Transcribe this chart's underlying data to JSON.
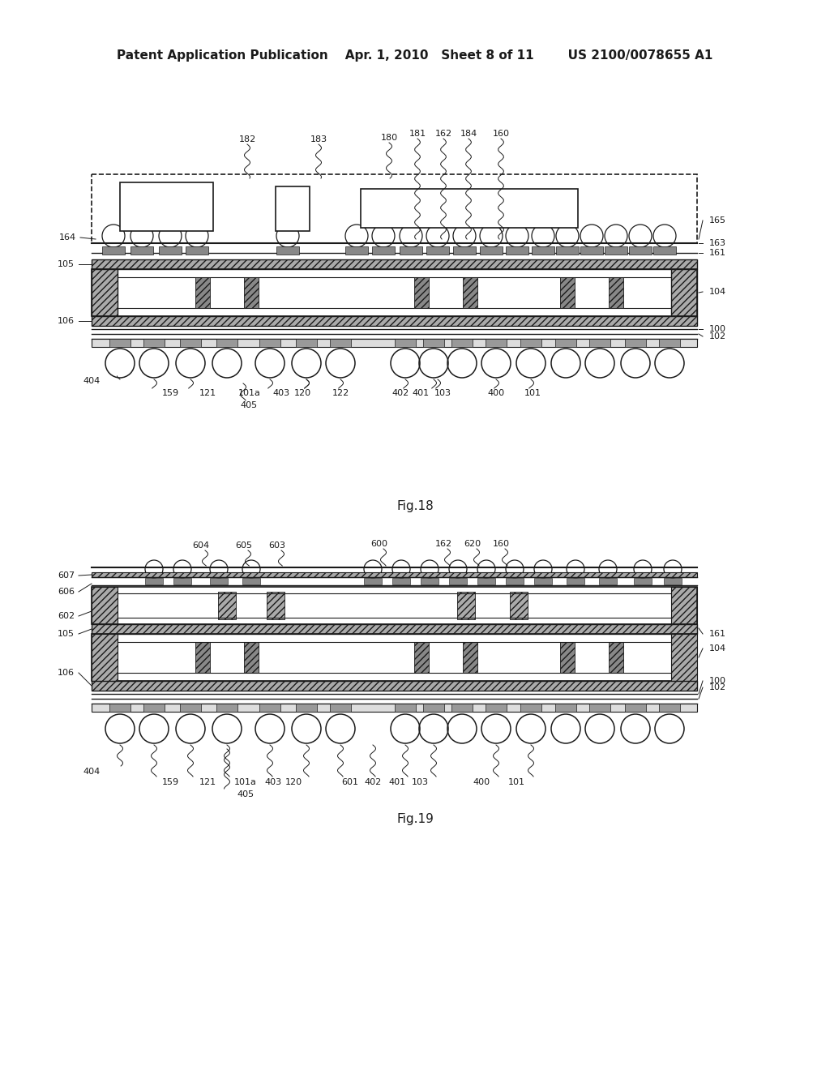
{
  "bg_color": "#ffffff",
  "lc": "#1a1a1a",
  "header": "Patent Application Publication    Apr. 1, 2010   Sheet 8 of 11        US 2100/0078655 A1",
  "fig18_caption": "Fig.18",
  "fig19_caption": "Fig.19",
  "fig_w": 1024,
  "fig_h": 1320
}
